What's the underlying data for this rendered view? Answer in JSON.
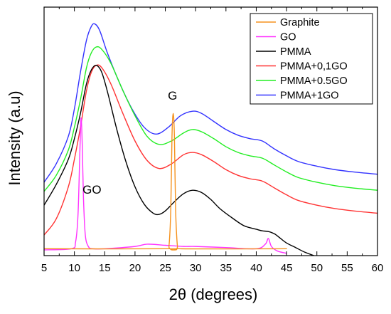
{
  "chart_data": {
    "type": "line",
    "xlabel": "2θ (degrees)",
    "ylabel": "Intensity (a.u)",
    "xlim": [
      5,
      60
    ],
    "ylim": [
      0,
      100
    ],
    "grid": false,
    "legend_position": "top-right",
    "x_ticks": [
      5,
      10,
      15,
      20,
      25,
      30,
      35,
      40,
      45,
      50,
      55,
      60
    ],
    "annotations": [
      {
        "text": "G",
        "x": 26.2,
        "y": 68
      },
      {
        "text": "GO",
        "x": 12.9,
        "y": 27
      }
    ],
    "series": [
      {
        "name": "Graphite",
        "color": "#f5921e",
        "x": [
          5,
          25.3,
          25.6,
          25.9,
          26.1,
          26.3,
          26.5,
          26.7,
          27.0,
          27.3,
          45
        ],
        "y": [
          3,
          3,
          4,
          20,
          52,
          62,
          52,
          20,
          4,
          3,
          3
        ]
      },
      {
        "name": "GO",
        "color": "#ff33ff",
        "x": [
          5,
          9.5,
          10.2,
          10.6,
          10.9,
          11.1,
          11.3,
          11.5,
          11.8,
          12.3,
          13,
          15,
          20,
          22,
          25,
          28,
          30,
          35,
          40,
          41.5,
          42,
          42.5,
          43.5,
          45
        ],
        "y": [
          2.5,
          3,
          6,
          18,
          45,
          60,
          48,
          25,
          9,
          4,
          3,
          3,
          4,
          5,
          4.5,
          4,
          4,
          3.5,
          3,
          5,
          7.5,
          4,
          2,
          1
        ]
      },
      {
        "name": "PMMA",
        "color": "#000000",
        "x": [
          5,
          7,
          9,
          10,
          11,
          12,
          12.8,
          13.6,
          14.5,
          15.5,
          17,
          18.5,
          20,
          21.5,
          23,
          24,
          25,
          26.5,
          28,
          29.5,
          31,
          32.5,
          34,
          36,
          38,
          40,
          41,
          42,
          43,
          44,
          45,
          46.5,
          48,
          49.5
        ],
        "y": [
          22,
          31,
          42,
          51,
          62,
          75,
          81,
          83,
          80,
          71,
          55,
          41,
          30,
          22.5,
          18.5,
          18,
          19.5,
          23.5,
          27,
          28.5,
          27.5,
          24.5,
          20.5,
          16.5,
          13,
          11.5,
          10.8,
          10.5,
          9.5,
          7.5,
          5.5,
          3.5,
          1.5,
          0
        ]
      },
      {
        "name": "PMMA+0,1GO",
        "color": "#ff3333",
        "x": [
          5,
          7,
          9,
          10,
          11,
          12,
          12.8,
          13.6,
          14.5,
          16,
          18,
          20,
          22,
          24,
          26,
          28,
          29.5,
          31,
          33,
          35,
          37,
          39,
          41,
          43,
          45,
          47,
          50,
          53,
          56,
          60
        ],
        "y": [
          9,
          16,
          30,
          42,
          56,
          72,
          80,
          83,
          82,
          75,
          62,
          50,
          41.5,
          38,
          40,
          44,
          45,
          44,
          41,
          37.5,
          35,
          33.5,
          32.5,
          29.5,
          26.5,
          24,
          22,
          20.5,
          19.5,
          18.5
        ]
      },
      {
        "name": "PMMA+0.5GO",
        "color": "#22ee22",
        "x": [
          5,
          7,
          9,
          10,
          11,
          12,
          12.8,
          13.6,
          14.5,
          16,
          18,
          20,
          22,
          24,
          26,
          28,
          29.5,
          31,
          33,
          35,
          37,
          39,
          41,
          43,
          45,
          47,
          50,
          53,
          56,
          60
        ],
        "y": [
          28,
          35,
          46,
          56,
          68,
          82,
          88.5,
          91,
          90,
          84,
          72,
          61,
          52,
          48.5,
          50,
          53.5,
          55,
          54,
          51,
          47.5,
          45,
          43.5,
          42.5,
          39.5,
          36.5,
          34,
          32,
          30.5,
          29.5,
          28.5
        ]
      },
      {
        "name": "PMMA+1GO",
        "color": "#3333ff",
        "x": [
          5,
          7,
          9,
          10,
          11,
          12,
          12.8,
          13.4,
          14.2,
          15.5,
          17.5,
          19.5,
          21.5,
          23.5,
          25.5,
          27.5,
          29.5,
          31,
          33,
          35,
          37,
          39,
          41,
          43,
          45,
          47,
          50,
          53,
          56,
          60
        ],
        "y": [
          32,
          40,
          52,
          64,
          80,
          94,
          100,
          101,
          98,
          88,
          75,
          64,
          56,
          53,
          56,
          61,
          63,
          62,
          58.5,
          55,
          52.5,
          51,
          50,
          46.5,
          43.5,
          41,
          39,
          37.5,
          36.5,
          35.5
        ]
      }
    ]
  }
}
